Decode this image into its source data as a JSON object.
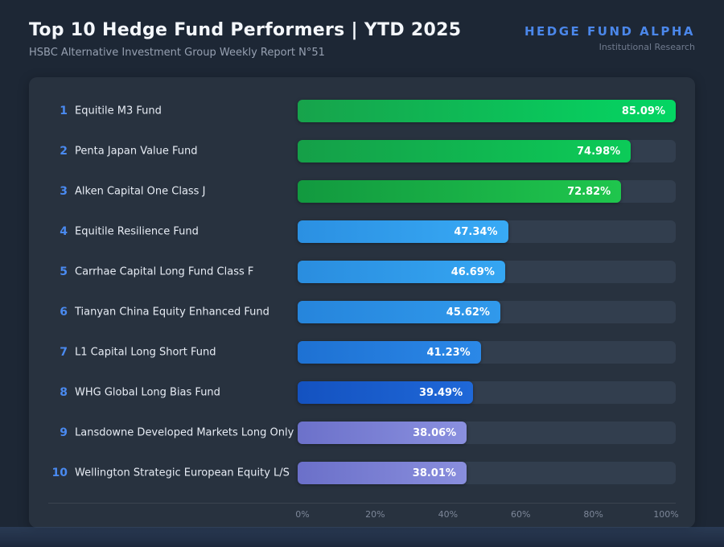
{
  "header": {
    "title": "Top 10 Hedge Fund Performers | YTD 2025",
    "subtitle": "HSBC Alternative Investment Group Weekly Report N°51"
  },
  "brand": {
    "name": "HEDGE FUND ALPHA",
    "tagline": "Institutional Research",
    "color": "#4b87ea"
  },
  "chart_data": {
    "type": "bar",
    "orientation": "horizontal",
    "title": "Top 10 Hedge Fund Performers | YTD 2025",
    "subtitle": "HSBC Alternative Investment Group Weekly Report N°51",
    "ranks": [
      1,
      2,
      3,
      4,
      5,
      6,
      7,
      8,
      9,
      10
    ],
    "categories": [
      "Equitile M3 Fund",
      "Penta Japan Value Fund",
      "Alken Capital One Class J",
      "Equitile Resilience Fund",
      "Carrhae Capital Long Fund Class F",
      "Tianyan China Equity Enhanced Fund",
      "L1 Capital Long Short Fund",
      "WHG Global Long Bias Fund",
      "Lansdowne Developed Markets Long Only",
      "Wellington Strategic European Equity L/S"
    ],
    "values": [
      85.09,
      74.98,
      72.82,
      47.34,
      46.69,
      45.62,
      41.23,
      39.49,
      38.06,
      38.01
    ],
    "value_labels": [
      "85.09%",
      "74.98%",
      "72.82%",
      "47.34%",
      "46.69%",
      "45.62%",
      "41.23%",
      "39.49%",
      "38.06%",
      "38.01%"
    ],
    "x_ticks": [
      "0%",
      "20%",
      "40%",
      "60%",
      "80%",
      "100%"
    ],
    "xlabel": "",
    "ylabel": "",
    "xlim": [
      0,
      100
    ],
    "bar_scale_max": 85.09,
    "grid": false,
    "legend": "none",
    "track_color": "#323e4e",
    "bar_colors": [
      [
        "#17a34b",
        "#04d663"
      ],
      [
        "#159f48",
        "#0ccb58"
      ],
      [
        "#12993f",
        "#1fc64d"
      ],
      [
        "#2b90e2",
        "#38aaf5"
      ],
      [
        "#2a8ddf",
        "#35a6f2"
      ],
      [
        "#2685dc",
        "#3099eb"
      ],
      [
        "#1e71d3",
        "#2b88e7"
      ],
      [
        "#1452c0",
        "#1f68d8"
      ],
      [
        "#6c71ca",
        "#8a90df"
      ],
      [
        "#6b70c9",
        "#898edd"
      ]
    ],
    "rank_color": "#4a8af0"
  }
}
